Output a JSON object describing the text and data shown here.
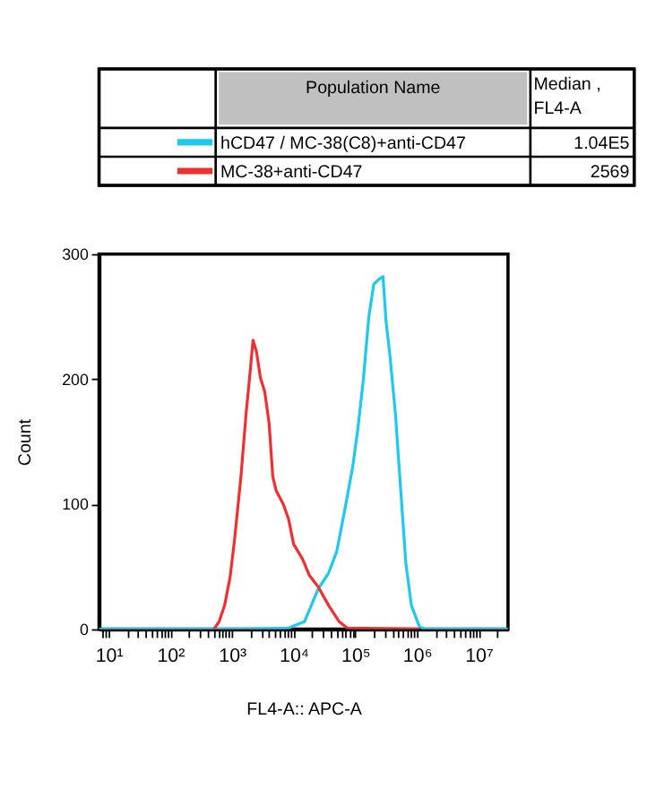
{
  "chart_data": {
    "type": "line",
    "xlabel": "FL4-A:: APC-A",
    "ylabel": "Count",
    "legend": "top",
    "legend_title": "Population Name",
    "annotations": [
      "Median , FL4-A",
      "1.04E5",
      "2569"
    ],
    "log": "x",
    "xlim": [
      7,
      30000000
    ],
    "ylim": [
      0,
      300
    ],
    "yticks": [
      0,
      100,
      200,
      300
    ],
    "xticks": [
      {
        "value": 8,
        "label": null
      },
      {
        "value": 9,
        "label": null
      },
      {
        "value": 10,
        "label": "10¹"
      },
      {
        "value": 20,
        "label": null
      },
      {
        "value": 30,
        "label": null
      },
      {
        "value": 40,
        "label": null
      },
      {
        "value": 50,
        "label": null
      },
      {
        "value": 60,
        "label": null
      },
      {
        "value": 70,
        "label": null
      },
      {
        "value": 80,
        "label": null
      },
      {
        "value": 90,
        "label": null
      },
      {
        "value": 100,
        "label": "10²"
      },
      {
        "value": 200,
        "label": null
      },
      {
        "value": 300,
        "label": null
      },
      {
        "value": 400,
        "label": null
      },
      {
        "value": 500,
        "label": null
      },
      {
        "value": 600,
        "label": null
      },
      {
        "value": 700,
        "label": null
      },
      {
        "value": 800,
        "label": null
      },
      {
        "value": 900,
        "label": null
      },
      {
        "value": 1000,
        "label": "10³"
      },
      {
        "value": 2000,
        "label": null
      },
      {
        "value": 3000,
        "label": null
      },
      {
        "value": 4000,
        "label": null
      },
      {
        "value": 5000,
        "label": null
      },
      {
        "value": 6000,
        "label": null
      },
      {
        "value": 7000,
        "label": null
      },
      {
        "value": 8000,
        "label": null
      },
      {
        "value": 9000,
        "label": null
      },
      {
        "value": 10000,
        "label": "10⁴"
      },
      {
        "value": 20000,
        "label": null
      },
      {
        "value": 30000,
        "label": null
      },
      {
        "value": 40000,
        "label": null
      },
      {
        "value": 50000,
        "label": null
      },
      {
        "value": 60000,
        "label": null
      },
      {
        "value": 70000,
        "label": null
      },
      {
        "value": 80000,
        "label": null
      },
      {
        "value": 90000,
        "label": null
      },
      {
        "value": 100000,
        "label": "10⁵"
      },
      {
        "value": 200000,
        "label": null
      },
      {
        "value": 300000,
        "label": null
      },
      {
        "value": 400000,
        "label": null
      },
      {
        "value": 500000,
        "label": null
      },
      {
        "value": 600000,
        "label": null
      },
      {
        "value": 700000,
        "label": null
      },
      {
        "value": 800000,
        "label": null
      },
      {
        "value": 900000,
        "label": null
      },
      {
        "value": 1000000,
        "label": "10⁶"
      },
      {
        "value": 2000000,
        "label": null
      },
      {
        "value": 3000000,
        "label": null
      },
      {
        "value": 4000000,
        "label": null
      },
      {
        "value": 5000000,
        "label": null
      },
      {
        "value": 6000000,
        "label": null
      },
      {
        "value": 7000000,
        "label": null
      },
      {
        "value": 8000000,
        "label": null
      },
      {
        "value": 9000000,
        "label": null
      },
      {
        "value": 10000000,
        "label": "10⁷"
      },
      {
        "value": 20000000,
        "label": null
      }
    ],
    "series": [
      {
        "name": "hCD47 / MC-38(C8)+anti-CD47",
        "color": "#1ec8f0",
        "x": [
          7,
          1550,
          8300,
          15000,
          25000,
          37000,
          50000,
          68000,
          91000,
          110000,
          135000,
          166000,
          200000,
          245000,
          282000,
          316000,
          363000,
          447000,
          550000,
          661000,
          813000,
          1100000,
          1350000,
          30000000
        ],
        "values": [
          0,
          0,
          1,
          6,
          32,
          45,
          62,
          96,
          130,
          160,
          199,
          250,
          276,
          280,
          282,
          246,
          220,
          173,
          109,
          53,
          19,
          2,
          0,
          0
        ]
      },
      {
        "name": "MC-38+anti-CD47",
        "color": "#f03030",
        "x": [
          510,
          620,
          760,
          930,
          1100,
          1400,
          1700,
          1950,
          2200,
          2500,
          2900,
          3400,
          4000,
          4600,
          5200,
          6800,
          8300,
          10000,
          14000,
          18000,
          25000,
          37000,
          55000,
          74000,
          1100000
        ],
        "values": [
          0,
          6,
          19,
          41,
          71,
          122,
          173,
          203,
          231,
          222,
          201,
          190,
          165,
          122,
          111,
          100,
          88,
          68,
          56,
          43,
          34,
          19,
          6,
          1,
          0
        ]
      }
    ]
  }
}
